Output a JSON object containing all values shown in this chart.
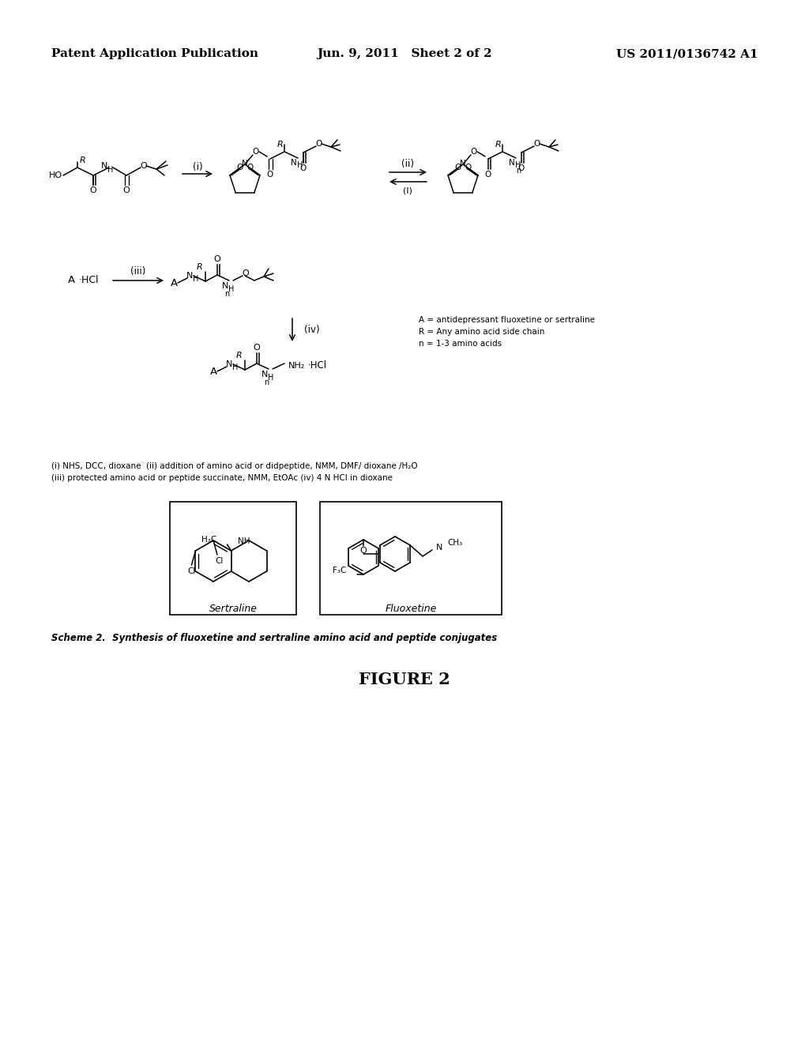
{
  "bg_color": "#ffffff",
  "header_left": "Patent Application Publication",
  "header_center": "Jun. 9, 2011   Sheet 2 of 2",
  "header_right": "US 2011/0136742 A1",
  "scheme_caption": "Scheme 2.  Synthesis of fluoxetine and sertraline amino acid and peptide conjugates",
  "figure_label": "FIGURE 2",
  "footnote_1": "(i) NHS, DCC, dioxane  (ii) addition of amino acid or didpeptide, NMM, DMF/ dioxane /H₂O",
  "footnote_2": "(iii) protected amino acid or peptide succinate, NMM, EtOAc (iv) 4 N HCl in dioxane",
  "legend_1": "A = antidepressant fluoxetine or sertraline",
  "legend_2": "R = Any amino acid side chain",
  "legend_3": "n = 1-3 amino acids",
  "sertraline_label": "Sertraline",
  "fluoxetine_label": "Fluoxetine"
}
